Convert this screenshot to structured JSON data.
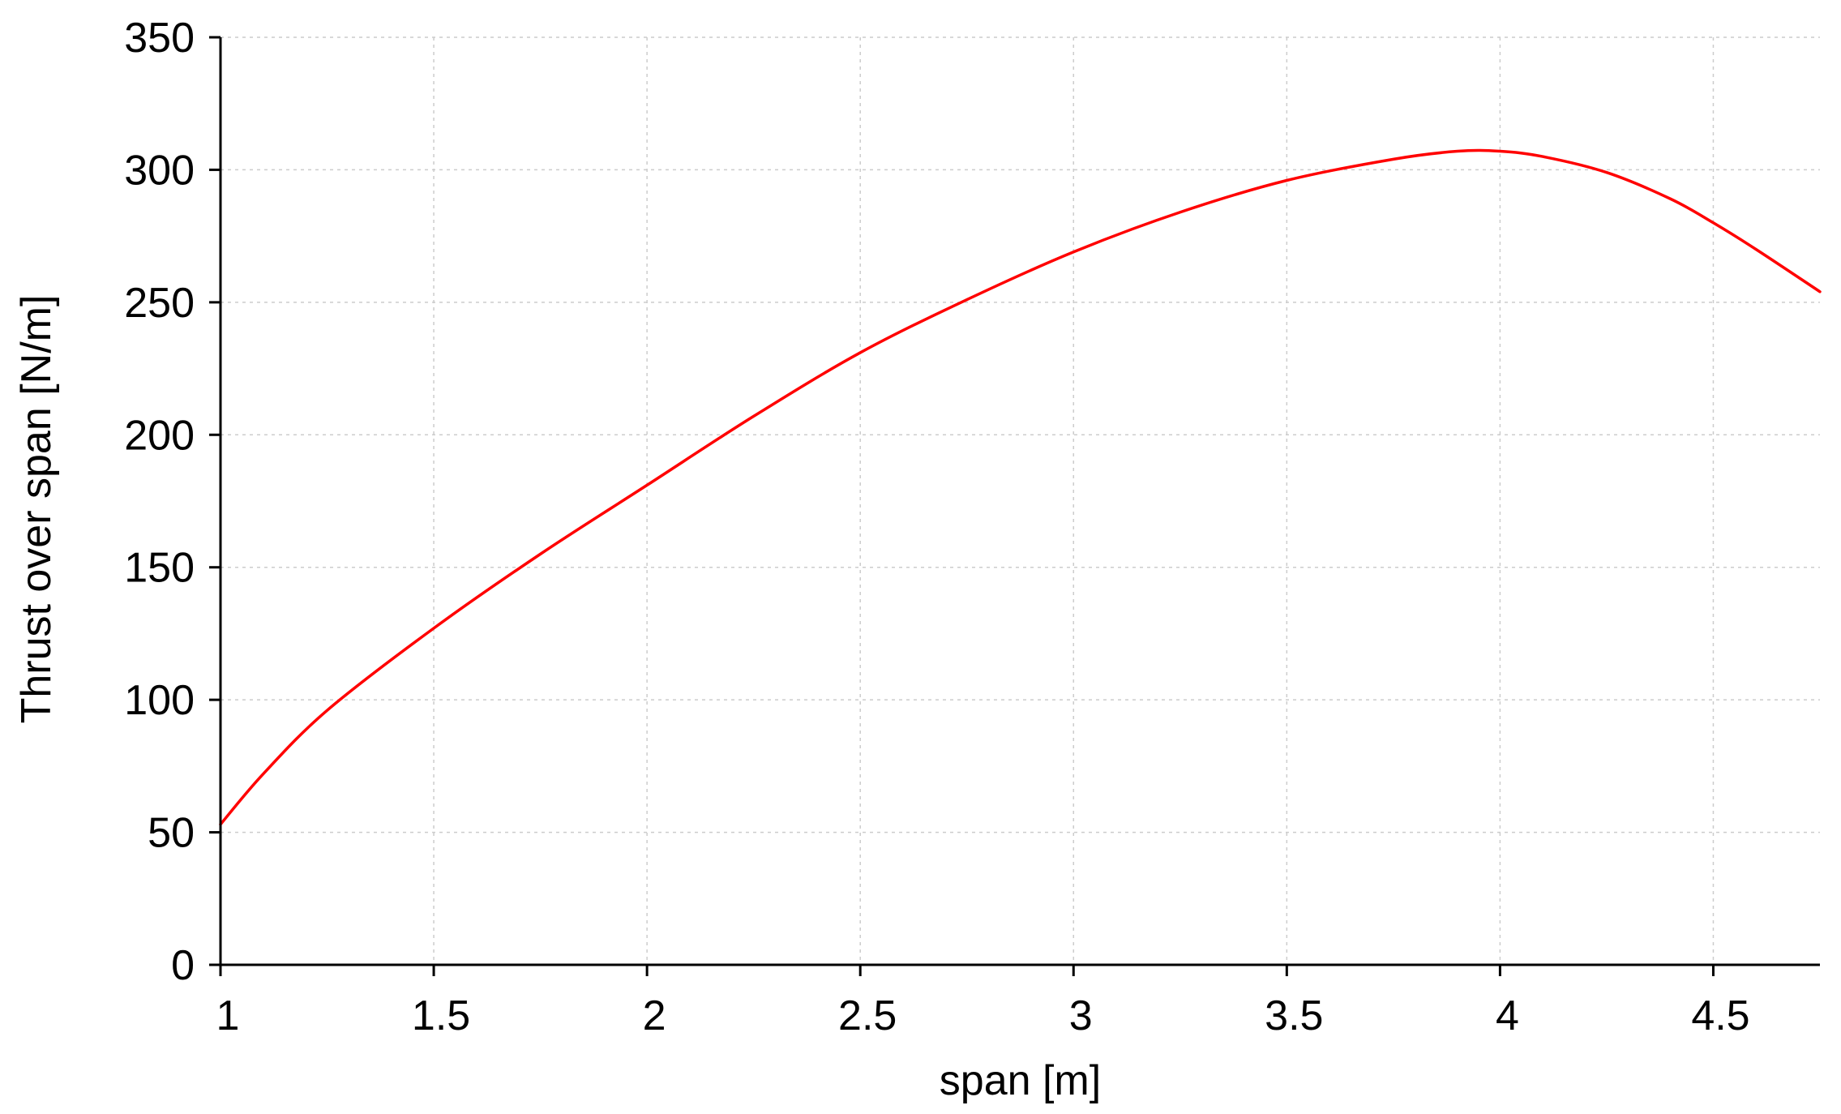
{
  "chart_data": {
    "type": "line",
    "title": "",
    "xlabel": "span [m]",
    "ylabel": "Thrust over span [N/m]",
    "xlim": [
      1,
      4.75
    ],
    "ylim": [
      0,
      350
    ],
    "x_ticks": [
      "1",
      "1.5",
      "2",
      "2.5",
      "3",
      "3.5",
      "4",
      "4.5"
    ],
    "y_ticks": [
      "0",
      "50",
      "100",
      "150",
      "200",
      "250",
      "300",
      "350"
    ],
    "grid": true,
    "legend": "none",
    "series": [
      {
        "color": "#ff0000",
        "x": [
          1.0,
          1.1,
          1.25,
          1.5,
          1.75,
          2.0,
          2.25,
          2.5,
          2.75,
          3.0,
          3.25,
          3.5,
          3.75,
          3.9,
          4.0,
          4.1,
          4.25,
          4.4,
          4.5,
          4.6,
          4.75
        ],
        "y": [
          53,
          72,
          96,
          127,
          155,
          181,
          207,
          231,
          251,
          269,
          284,
          296,
          304,
          307,
          307,
          305,
          299,
          289,
          280,
          270,
          254
        ]
      }
    ]
  }
}
